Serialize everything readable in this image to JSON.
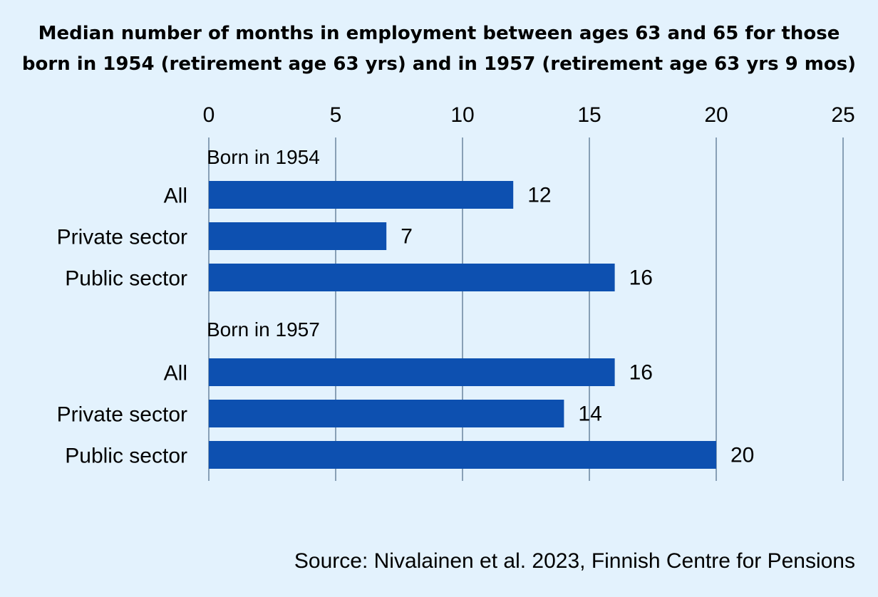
{
  "chart_data": {
    "type": "bar",
    "orientation": "horizontal",
    "title": "Median number of months in employment between ages 63 and 65 for those born in 1954 (retirement age 63 yrs) and in 1957 (retirement age 63 yrs 9 mos)",
    "title_lines": [
      "Median number of months in employment between ages 63 and 65 for those",
      "born in 1954 (retirement age 63 yrs) and in 1957 (retirement age 63 yrs 9 mos)"
    ],
    "xlim": [
      0,
      25
    ],
    "xticks": [
      0,
      5,
      10,
      15,
      20,
      25
    ],
    "xlabel": "",
    "ylabel": "",
    "grid": true,
    "axis_position": "top",
    "bar_color": "#0d50b0",
    "groups": [
      {
        "label": "Born in 1954",
        "categories": [
          "All",
          "Private sector",
          "Public sector"
        ],
        "values": [
          12,
          7,
          16
        ]
      },
      {
        "label": "Born in 1957",
        "categories": [
          "All",
          "Private sector",
          "Public sector"
        ],
        "values": [
          16,
          14,
          20
        ]
      }
    ]
  },
  "source": "Source: Nivalainen et al. 2023, Finnish Centre for Pensions"
}
